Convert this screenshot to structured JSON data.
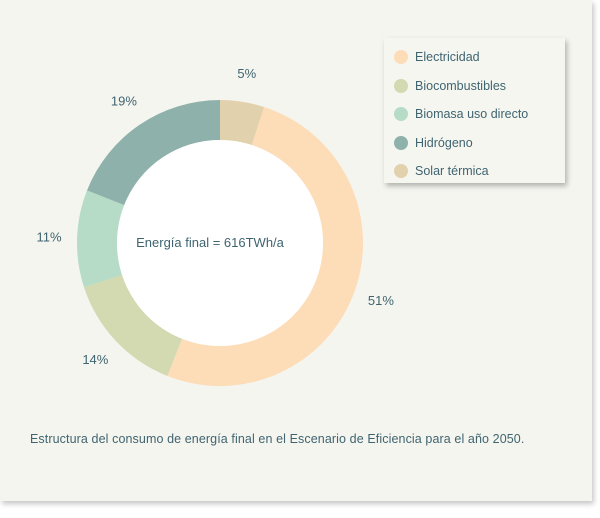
{
  "chart_data": {
    "type": "pie",
    "variant": "donut",
    "center_label": "Energía final = 616TWh/a",
    "categories": [
      "Electricidad",
      "Biocombustibles",
      "Biomasa uso directo",
      "Hidrógeno",
      "Solar térmica"
    ],
    "values": [
      51,
      14,
      11,
      19,
      5
    ],
    "value_labels": [
      "51%",
      "14%",
      "11%",
      "19%",
      "5%"
    ],
    "colors": [
      "#fddcb8",
      "#d3d9b1",
      "#b6dbc6",
      "#8fb1ab",
      "#e1d2ad"
    ],
    "legend_position": "top-right",
    "caption": "Estructura del consumo de energía final en el Escenario de Eficiencia para el año 2050."
  }
}
